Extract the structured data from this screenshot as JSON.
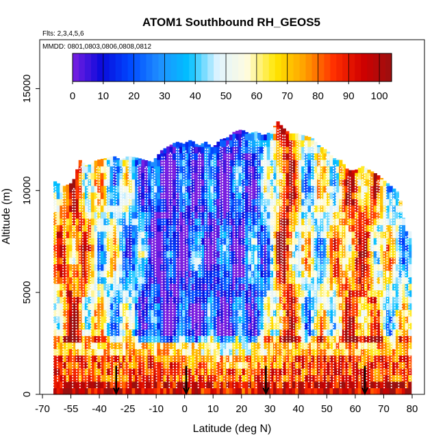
{
  "chart_data": {
    "type": "heatmap",
    "title": "ATOM1 Southbound RH_GEOS5",
    "subtitle": "Flts: 2,3,4,5,6",
    "annotation": "MMDD: 0801,0803,0806,0808,0812",
    "xlabel": "Latitude (deg N)",
    "ylabel": "Altitude (m)",
    "x_ticks": [
      -70,
      -55,
      -40,
      -25,
      -10,
      0,
      10,
      20,
      30,
      40,
      50,
      60,
      70,
      80
    ],
    "y_ticks": [
      0,
      5000,
      10000,
      15000
    ],
    "xlim": [
      -72,
      88
    ],
    "ylim": [
      0,
      17400
    ],
    "colorbar": {
      "ticks": [
        0,
        10,
        20,
        30,
        40,
        50,
        60,
        70,
        80,
        90,
        100
      ],
      "range": [
        0,
        104
      ],
      "colors": [
        "#7a1fe0",
        "#0a0adc",
        "#0049ff",
        "#1f8fff",
        "#00c0ff",
        "#dff3ff",
        "#fffce0",
        "#ffe600",
        "#ffa000",
        "#ff3000",
        "#d00000",
        "#9a1010"
      ]
    },
    "arrow_latitudes": [
      -42,
      -13,
      20,
      61
    ],
    "profiles_lat": [
      -68,
      -64,
      -60,
      -57,
      -54,
      -50,
      -46,
      -43,
      -40,
      -37,
      -33,
      -30,
      -27,
      -23,
      -20,
      -17,
      -14,
      -11,
      -8,
      -5,
      -2,
      1,
      4,
      7,
      10,
      13,
      16,
      19,
      22,
      25,
      27,
      30,
      33,
      36,
      39,
      42,
      45,
      48,
      51,
      54,
      57,
      60,
      63,
      66,
      69,
      72,
      75,
      78
    ],
    "profiles_top_km": [
      10.5,
      10.2,
      10.4,
      11.5,
      11.2,
      11.5,
      11.6,
      11.7,
      11.5,
      11.7,
      11.6,
      11.5,
      11.4,
      12.0,
      12.2,
      12.4,
      12.3,
      12.5,
      12.2,
      12.4,
      12.1,
      12.5,
      12.6,
      12.9,
      13.0,
      12.8,
      12.9,
      12.7,
      12.9,
      13.4,
      13.1,
      12.8,
      12.8,
      12.7,
      12.6,
      12.2,
      12.0,
      11.6,
      11.5,
      11.0,
      11.0,
      11.2,
      11.0,
      10.8,
      10.5,
      10.2,
      9.9,
      8.0
    ]
  }
}
